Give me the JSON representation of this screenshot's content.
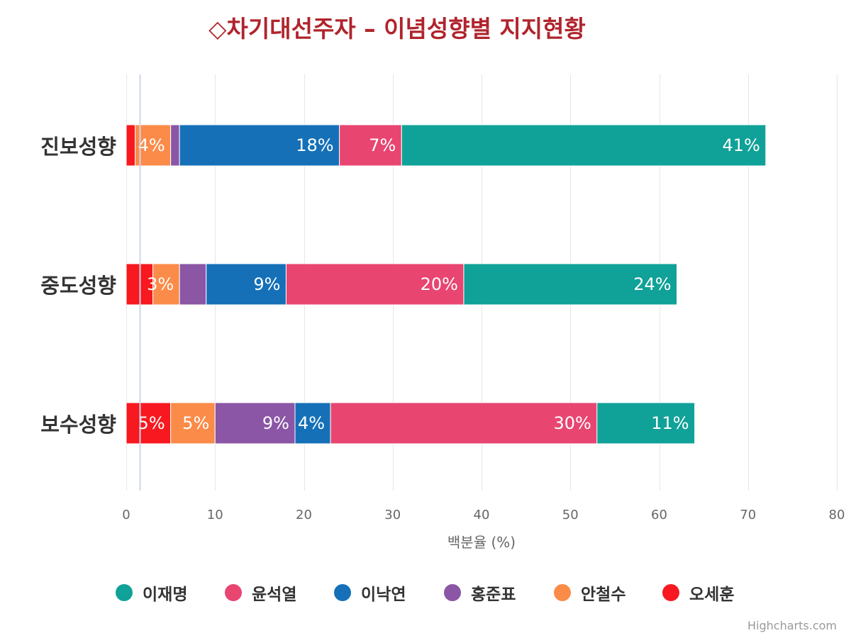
{
  "title": "◇차기대선주자 – 이념성향별 지지현황",
  "credits": "Highcharts.com",
  "chart_data": {
    "type": "bar",
    "stacked": true,
    "orientation": "horizontal",
    "categories": [
      "진보성향",
      "중도성향",
      "보수성향"
    ],
    "series": [
      {
        "name": "오세훈",
        "color": "#f7191f",
        "values": [
          1,
          3,
          5
        ],
        "labels": [
          "",
          "",
          "5%"
        ]
      },
      {
        "name": "안철수",
        "color": "#fb8b48",
        "values": [
          4,
          3,
          5
        ],
        "labels": [
          "4%",
          "3%",
          "5%"
        ]
      },
      {
        "name": "홍준표",
        "color": "#8a56a5",
        "values": [
          1,
          3,
          9
        ],
        "labels": [
          "",
          "",
          "9%"
        ]
      },
      {
        "name": "이낙연",
        "color": "#1570b8",
        "values": [
          18,
          9,
          4
        ],
        "labels": [
          "18%",
          "9%",
          "4%"
        ]
      },
      {
        "name": "윤석열",
        "color": "#e84571",
        "values": [
          7,
          20,
          30
        ],
        "labels": [
          "7%",
          "20%",
          "30%"
        ]
      },
      {
        "name": "이재명",
        "color": "#10a198",
        "values": [
          41,
          24,
          11
        ],
        "labels": [
          "41%",
          "24%",
          "11%"
        ]
      }
    ],
    "xlabel": "백분율 (%)",
    "xlim": [
      0,
      80
    ],
    "ticks": [
      0,
      10,
      20,
      30,
      40,
      50,
      60,
      70,
      80
    ],
    "grid": true,
    "legend_position": "bottom",
    "legend_order": [
      "이재명",
      "윤석열",
      "이낙연",
      "홍준표",
      "안철수",
      "오세훈"
    ]
  }
}
